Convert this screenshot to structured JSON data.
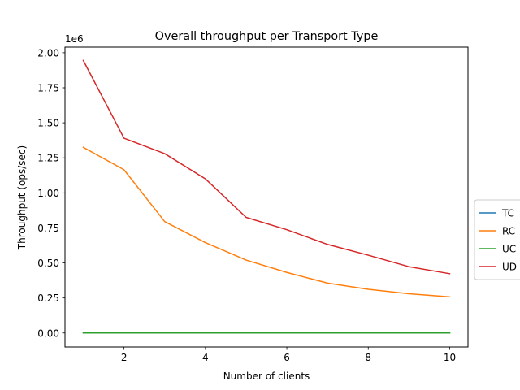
{
  "chart_data": {
    "type": "line",
    "title": "Overall throughput per Transport Type",
    "xlabel": "Number of clients",
    "ylabel": "Throughput (ops/sec)",
    "y_offset_label": "1e6",
    "xlim": [
      0.55,
      10.45
    ],
    "ylim": [
      -100000,
      2040000
    ],
    "xticks": [
      2,
      4,
      6,
      8,
      10
    ],
    "xtick_labels": [
      "2",
      "4",
      "6",
      "8",
      "10"
    ],
    "yticks": [
      0,
      250000,
      500000,
      750000,
      1000000,
      1250000,
      1500000,
      1750000,
      2000000
    ],
    "ytick_labels": [
      "0.00",
      "0.25",
      "0.50",
      "0.75",
      "1.00",
      "1.25",
      "1.50",
      "1.75",
      "2.00"
    ],
    "grid": false,
    "legend_position": "right, outside plot (partially cut off)",
    "x": [
      1,
      2,
      3,
      4,
      5,
      6,
      7,
      8,
      9,
      10
    ],
    "series": [
      {
        "name": "TC",
        "color": "#1f77b4",
        "values": [
          0,
          0,
          0,
          0,
          0,
          0,
          0,
          0,
          0,
          0
        ]
      },
      {
        "name": "RC",
        "color": "#ff7f0e",
        "values": [
          1325000,
          1165000,
          795000,
          645000,
          520000,
          432000,
          356000,
          312000,
          280000,
          258000
        ]
      },
      {
        "name": "UC",
        "color": "#2ca02c",
        "values": [
          0,
          0,
          0,
          0,
          0,
          0,
          0,
          0,
          0,
          0
        ]
      },
      {
        "name": "UD",
        "color": "#d62728",
        "values": [
          1945000,
          1390000,
          1280000,
          1100000,
          825000,
          737000,
          632000,
          555000,
          473000,
          423000
        ]
      }
    ]
  }
}
